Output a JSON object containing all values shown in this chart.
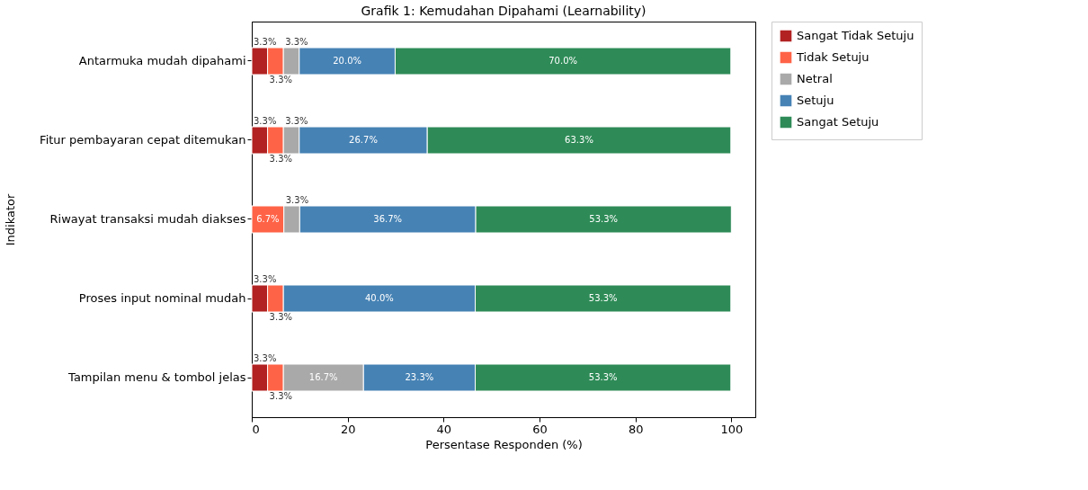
{
  "chart_data": {
    "type": "bar",
    "orientation": "horizontal",
    "stacked": true,
    "title": "Grafik 1: Kemudahan Dipahami (Learnability)",
    "xlabel": "Persentase Responden (%)",
    "ylabel": "Indikator",
    "categories": [
      "Antarmuka mudah dipahami",
      "Fitur pembayaran cepat ditemukan",
      "Riwayat transaksi mudah diakses",
      "Proses input nominal mudah",
      "Tampilan menu & tombol jelas"
    ],
    "series": [
      {
        "name": "Sangat Tidak Setuju",
        "color": "#b22222",
        "values": [
          3.3,
          3.3,
          0,
          3.3,
          3.3
        ],
        "value_labels": [
          "3.3%",
          "3.3%",
          null,
          "3.3%",
          "3.3%"
        ]
      },
      {
        "name": "Tidak Setuju",
        "color": "#ff6347",
        "values": [
          3.3,
          3.3,
          6.7,
          3.3,
          3.3
        ],
        "value_labels": [
          "3.3%",
          "3.3%",
          "6.7%",
          "3.3%",
          "3.3%"
        ]
      },
      {
        "name": "Netral",
        "color": "#a9a9a9",
        "values": [
          3.3,
          3.3,
          3.3,
          0,
          16.7
        ],
        "value_labels": [
          "3.3%",
          "3.3%",
          "3.3%",
          null,
          "16.7%"
        ]
      },
      {
        "name": "Setuju",
        "color": "#4682b4",
        "values": [
          20.0,
          26.7,
          36.7,
          40.0,
          23.3
        ],
        "value_labels": [
          "20.0%",
          "26.7%",
          "36.7%",
          "40.0%",
          "23.3%"
        ]
      },
      {
        "name": "Sangat Setuju",
        "color": "#2e8b57",
        "values": [
          70.0,
          63.3,
          53.3,
          53.3,
          53.3
        ],
        "value_labels": [
          "70.0%",
          "63.3%",
          "53.3%",
          "53.3%",
          "53.3%"
        ]
      }
    ],
    "xlim": [
      0,
      105
    ],
    "xticks": [
      0,
      20,
      40,
      60,
      80,
      100
    ],
    "grid": false,
    "legend": "top right"
  }
}
